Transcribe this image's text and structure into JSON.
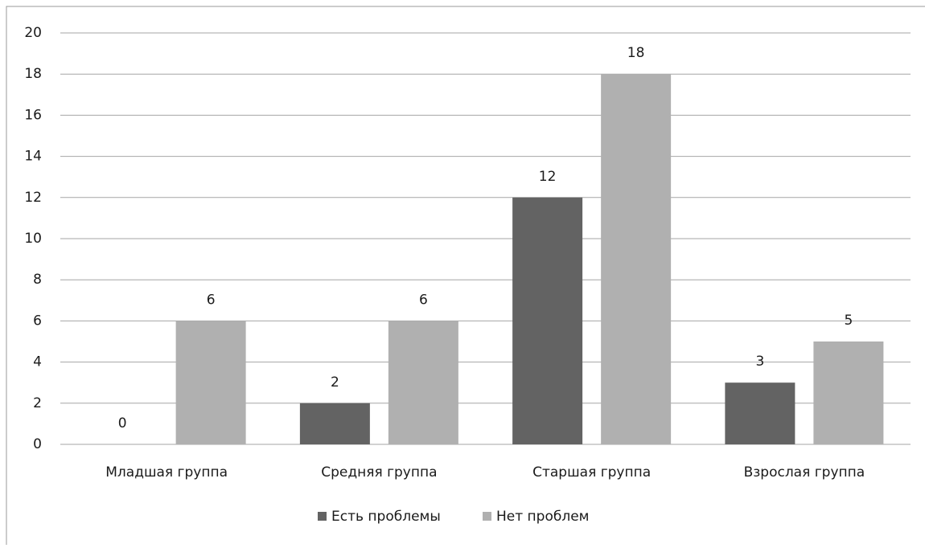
{
  "chart_data": {
    "type": "bar",
    "categories": [
      "Младшая группа",
      "Средняя группа",
      "Старшая группа",
      "Взрослая группа"
    ],
    "series": [
      {
        "name": "Есть проблемы",
        "color": "#636363",
        "values": [
          0,
          2,
          12,
          3
        ]
      },
      {
        "name": "Нет проблем",
        "color": "#b0b0b0",
        "values": [
          6,
          6,
          18,
          5
        ]
      }
    ],
    "ylim": [
      0,
      20
    ],
    "yticks": [
      0,
      2,
      4,
      6,
      8,
      10,
      12,
      14,
      16,
      18,
      20
    ],
    "grid": true,
    "legend": "bottom"
  }
}
